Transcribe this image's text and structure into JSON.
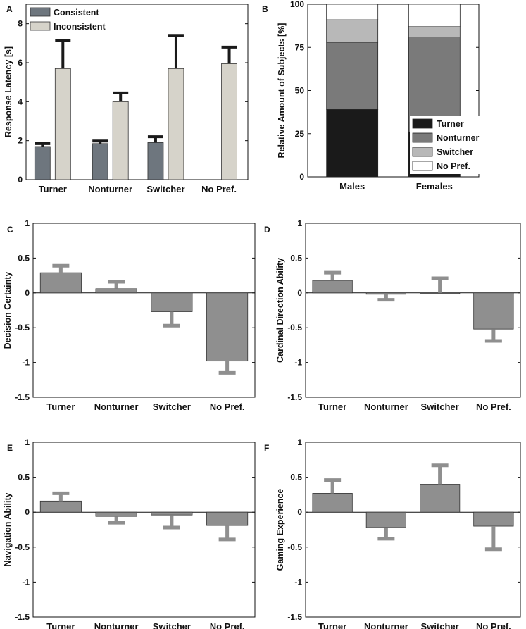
{
  "chart_data": [
    {
      "panel": "A",
      "type": "bar",
      "ylabel": "Response Latency [s]",
      "ylim": [
        0,
        9
      ],
      "yticks": [
        0,
        2,
        4,
        6,
        8
      ],
      "categories": [
        "Turner",
        "Nonturner",
        "Switcher",
        "No Pref."
      ],
      "series": [
        {
          "name": "Consistent",
          "color": "#6e767e",
          "values": [
            1.7,
            1.85,
            1.9,
            null
          ],
          "errors": [
            0.15,
            0.13,
            0.3,
            null
          ]
        },
        {
          "name": "Inconsistent",
          "color": "#d6d3ca",
          "values": [
            5.7,
            4.0,
            5.7,
            5.95
          ],
          "errors": [
            1.45,
            0.45,
            1.7,
            0.85
          ]
        }
      ],
      "legend": "top-left"
    },
    {
      "panel": "B",
      "type": "stacked-bar",
      "ylabel": "Relative Amount of Subjects [%]",
      "ylim": [
        0,
        100
      ],
      "yticks": [
        0,
        25,
        50,
        75,
        100
      ],
      "categories": [
        "Males",
        "Females"
      ],
      "series": [
        {
          "name": "Turner",
          "color": "#1a1a1a",
          "values": [
            39,
            26
          ]
        },
        {
          "name": "Nonturner",
          "color": "#7a7a7a",
          "values": [
            39,
            55
          ]
        },
        {
          "name": "Switcher",
          "color": "#b8b8b8",
          "values": [
            13,
            6
          ]
        },
        {
          "name": "No Pref.",
          "color": "#ffffff",
          "values": [
            9,
            13
          ]
        }
      ],
      "legend": "bottom-right"
    },
    {
      "panel": "C",
      "type": "bar",
      "ylabel": "Decision Certainty",
      "ylim": [
        -1.5,
        1
      ],
      "yticks": [
        "1",
        "0.5",
        "0",
        "-0.5",
        "-1",
        "-1.5"
      ],
      "categories": [
        "Turner",
        "Nonturner",
        "Switcher",
        "No Pref."
      ],
      "values": [
        0.29,
        0.06,
        -0.27,
        -0.98
      ],
      "errors": [
        0.1,
        0.1,
        0.2,
        0.17
      ],
      "color": "#8f8f8f"
    },
    {
      "panel": "D",
      "type": "bar",
      "ylabel": "Cardinal Direction Ability",
      "ylim": [
        -1.5,
        1
      ],
      "yticks": [
        "1",
        "0.5",
        "0",
        "-0.5",
        "-1",
        "-1.5"
      ],
      "categories": [
        "Turner",
        "Nonturner",
        "Switcher",
        "No Pref."
      ],
      "values": [
        0.18,
        -0.02,
        0.0,
        -0.52
      ],
      "errors": [
        0.11,
        0.08,
        0.21,
        0.17
      ],
      "color": "#8f8f8f"
    },
    {
      "panel": "E",
      "type": "bar",
      "ylabel": "Navigation Ability",
      "ylim": [
        -1.5,
        1
      ],
      "yticks": [
        "1",
        "0.5",
        "0",
        "-0.5",
        "-1",
        "-1.5"
      ],
      "categories": [
        "Turner",
        "Nonturner",
        "Switcher",
        "No Pref."
      ],
      "values": [
        0.16,
        -0.06,
        -0.04,
        -0.19
      ],
      "errors": [
        0.11,
        0.09,
        0.18,
        0.2
      ],
      "color": "#8f8f8f"
    },
    {
      "panel": "F",
      "type": "bar",
      "ylabel": "Gaming Experience",
      "ylim": [
        -1.5,
        1
      ],
      "yticks": [
        "1",
        "0.5",
        "0",
        "-0.5",
        "-1",
        "-1.5"
      ],
      "categories": [
        "Turner",
        "Nonturner",
        "Switcher",
        "No Pref."
      ],
      "values": [
        0.27,
        -0.22,
        0.4,
        -0.2
      ],
      "errors": [
        0.19,
        0.16,
        0.27,
        0.33
      ],
      "color": "#8f8f8f"
    }
  ]
}
